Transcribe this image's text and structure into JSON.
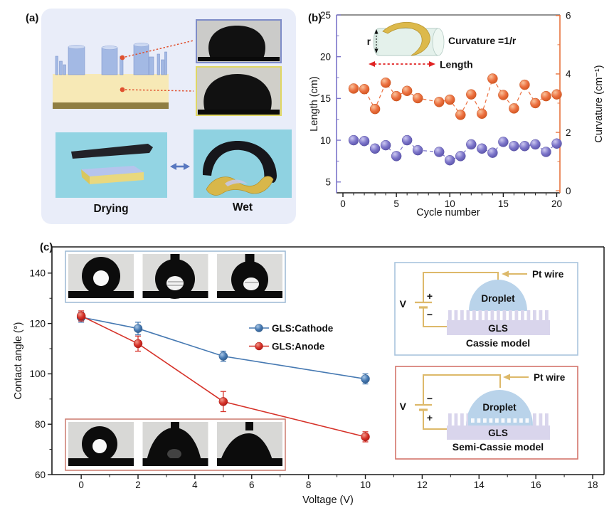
{
  "panel_a": {
    "label": "(a)",
    "drying_label": "Drying",
    "wet_label": "Wet"
  },
  "panel_b": {
    "label": "(b)",
    "inset": {
      "r_label": "r",
      "formula": "Curvature =1/r",
      "length_label": "Length"
    }
  },
  "panel_c": {
    "label": "(c)",
    "insets": {
      "cassie": {
        "v": "V",
        "plus": "+",
        "minus": "−",
        "pt_wire": "Pt wire",
        "droplet": "Droplet",
        "substrate": "GLS",
        "title": "Cassie model"
      },
      "semi_cassie": {
        "v": "V",
        "plus": "+",
        "minus": "−",
        "pt_wire": "Pt wire",
        "droplet": "Droplet",
        "substrate": "GLS",
        "title": "Semi-Cassie model"
      }
    }
  },
  "colors": {
    "panel_a_card": "#e9edf9",
    "cyan_photo": "#92d4e3",
    "pillar_blue": "#a3b9e4",
    "substrate_yellow": "#f7e9b6",
    "substrate_base": "#8f7e42",
    "annotation_red": "#e0502e",
    "length_purple": "#7b74c9",
    "curvature_orange": "#ec7040",
    "cathode_blue": "#4679b2",
    "anode_red": "#d63229",
    "gold_wire": "#ddb96a",
    "droplet_blue": "#b9d3ea",
    "gls_lavender": "#d9d5ec",
    "cassie_border": "#a8c4de",
    "semi_cassie_border": "#d4756a"
  },
  "chart_data": [
    {
      "type": "scatter",
      "title": "",
      "xlabel": "Cycle number",
      "ylabel_left": "Length (cm)",
      "ylabel_right": "Curvature (cm⁻¹)",
      "xlim": [
        -0.6,
        20.3
      ],
      "xticks": [
        0,
        5,
        10,
        15,
        20
      ],
      "xminor": [
        1,
        2,
        3,
        4,
        6,
        7,
        8,
        9,
        11,
        12,
        13,
        14,
        16,
        17,
        18,
        19
      ],
      "ylim_left": [
        3.7,
        25
      ],
      "yticks_left": [
        5,
        10,
        15,
        20,
        25
      ],
      "yminor_left": [
        7.5,
        12.5,
        17.5,
        22.5
      ],
      "ylim_right": [
        -0.07,
        6.02
      ],
      "yticks_right": [
        0,
        2,
        4,
        6
      ],
      "yminor_right": [
        1,
        3,
        5
      ],
      "axis_colors": {
        "left": "#7b74c9",
        "right": "#e8743f",
        "bottom": "#1a1a1a",
        "top": "#6e6e6e"
      },
      "grid": false,
      "x": [
        1,
        2,
        3,
        4,
        5,
        6,
        7,
        9,
        10,
        11,
        12,
        13,
        14,
        15,
        16,
        17,
        18,
        19,
        20
      ],
      "series": [
        {
          "name": "Length",
          "axis": "left",
          "dashed": true,
          "color": "#7b74c9",
          "color_light": "#cdc9f0",
          "color_dark": "#524ba0",
          "values": [
            10.0,
            9.9,
            9.0,
            9.4,
            8.1,
            10.0,
            8.8,
            8.6,
            7.6,
            8.1,
            9.5,
            9.0,
            8.5,
            9.8,
            9.3,
            9.3,
            9.5,
            8.6,
            9.6
          ]
        },
        {
          "name": "Curvature",
          "axis": "right",
          "dashed": true,
          "color": "#ec7040",
          "color_light": "#f8c29b",
          "color_dark": "#c84e17",
          "values": [
            3.5,
            3.48,
            2.8,
            3.7,
            3.24,
            3.42,
            3.17,
            3.04,
            3.12,
            2.6,
            3.3,
            2.64,
            3.84,
            3.28,
            2.82,
            3.63,
            3.0,
            3.24,
            3.3
          ]
        }
      ]
    },
    {
      "type": "line",
      "title": "",
      "xlabel": "Voltage (V)",
      "ylabel": "Contact angle (°)",
      "xlim": [
        -1.03,
        18.4
      ],
      "xticks": [
        0,
        2,
        4,
        6,
        8,
        10,
        12,
        14,
        16,
        18
      ],
      "xminor": [
        1,
        3,
        5,
        7,
        9,
        11,
        13,
        15,
        17
      ],
      "ylim": [
        60,
        150.4
      ],
      "yticks": [
        60,
        80,
        100,
        120,
        140
      ],
      "yminor": [
        70,
        90,
        110,
        130
      ],
      "axis_color": "#1a1a1a",
      "grid": false,
      "legend_position": "center",
      "x": [
        0,
        2,
        5,
        10
      ],
      "series": [
        {
          "name": "GLS:Cathode",
          "color": "#4679b2",
          "color_light": "#a9c7e6",
          "color_dark": "#2c5684",
          "values": [
            122.5,
            118,
            107,
            98
          ],
          "errors": [
            2,
            2.5,
            2,
            2
          ]
        },
        {
          "name": "GLS:Anode",
          "color": "#d63229",
          "color_light": "#f0988a",
          "color_dark": "#a31410",
          "values": [
            123,
            112,
            89,
            75
          ],
          "errors": [
            2,
            3,
            4,
            2
          ]
        }
      ]
    }
  ]
}
